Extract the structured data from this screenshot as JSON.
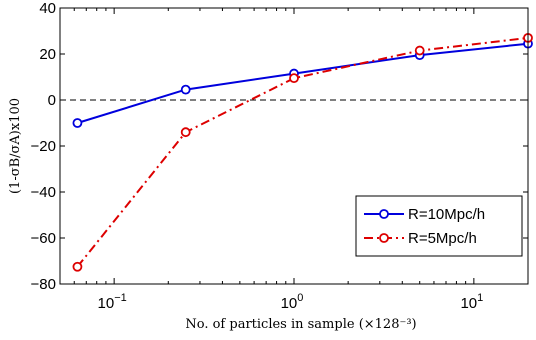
{
  "chart_data": {
    "type": "line",
    "x_scale": "log",
    "xlabel": "No. of particles in sample (×128⁻³)",
    "ylabel": "(1-σB/σA)x100",
    "xlim": [
      0.05,
      20
    ],
    "ylim": [
      -80,
      40
    ],
    "y_ticks": [
      "40",
      "20",
      "0",
      "−20",
      "−40",
      "−60",
      "−80"
    ],
    "x_ticks": [
      {
        "base": "10",
        "exp": "−1"
      },
      {
        "base": "10",
        "exp": "0"
      },
      {
        "base": "10",
        "exp": "1"
      }
    ],
    "grid": false,
    "zero_line": "dashed",
    "legend_position": "bottom-right",
    "series": [
      {
        "name": "R=10Mpc/h",
        "color": "#0000dd",
        "line_style": "solid",
        "marker": "circle",
        "x": [
          0.0625,
          0.25,
          1,
          5,
          20
        ],
        "y": [
          -10,
          4.5,
          11.5,
          19.5,
          24.5
        ]
      },
      {
        "name": "R=5Mpc/h",
        "color": "#dd0000",
        "line_style": "dash-dot",
        "marker": "circle",
        "x": [
          0.0625,
          0.25,
          1,
          5,
          20
        ],
        "y": [
          -72.5,
          -14,
          9.5,
          21.5,
          27
        ]
      }
    ]
  }
}
